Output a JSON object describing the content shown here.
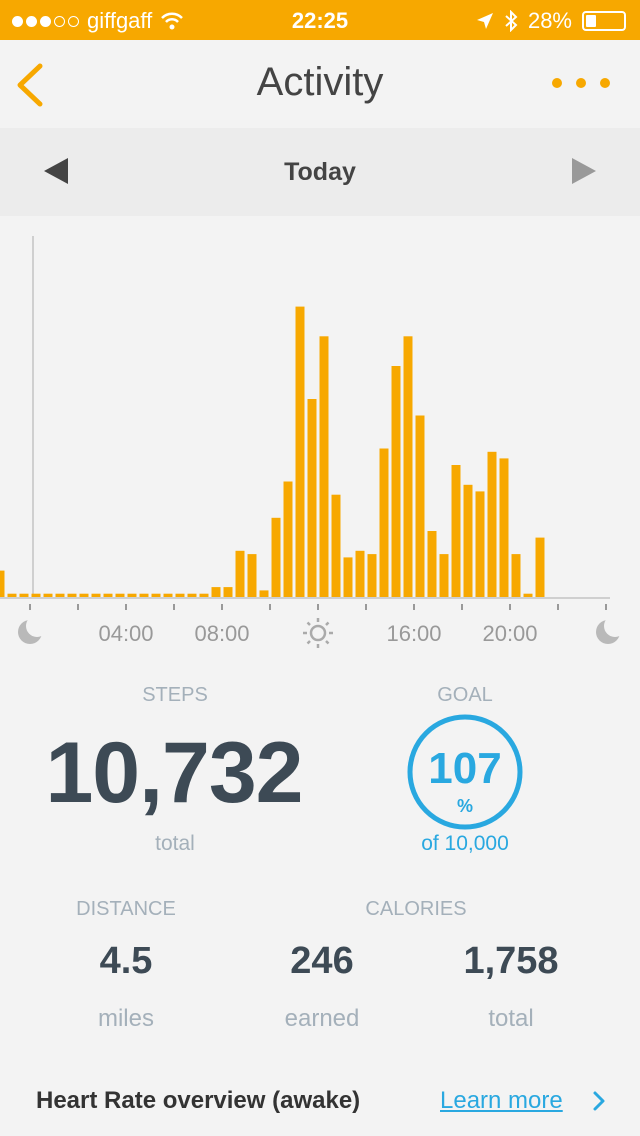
{
  "status_bar": {
    "carrier": "giffgaff",
    "time": "22:25",
    "battery_percent": "28%",
    "battery_level": 0.28,
    "signal_bars_filled": 3,
    "signal_bars_total": 5
  },
  "nav": {
    "title": "Activity",
    "back_icon": "chevron-left-icon",
    "more_icon": "more-horizontal-icon"
  },
  "date_nav": {
    "label": "Today"
  },
  "colors": {
    "accent": "#f7a800",
    "goal_blue": "#29a8e0",
    "text_dark": "#3d4a55",
    "text_muted": "#a4b0ba"
  },
  "chart_data": {
    "type": "bar",
    "title": "",
    "xlabel": "",
    "ylabel": "",
    "interval_minutes": 30,
    "x_tick_labels": [
      "04:00",
      "08:00",
      "16:00",
      "20:00"
    ],
    "x_tick_icons": [
      "moon-icon",
      "sun-icon",
      "moon-icon"
    ],
    "ylim": [
      0,
      1
    ],
    "values": [
      0.08,
      0.01,
      0.01,
      0.01,
      0.01,
      0.01,
      0.01,
      0.01,
      0.01,
      0.01,
      0.01,
      0.01,
      0.01,
      0.01,
      0.01,
      0.01,
      0.01,
      0.01,
      0.03,
      0.03,
      0.14,
      0.13,
      0.02,
      0.24,
      0.35,
      0.88,
      0.6,
      0.79,
      0.31,
      0.12,
      0.14,
      0.13,
      0.45,
      0.7,
      0.79,
      0.55,
      0.2,
      0.13,
      0.4,
      0.34,
      0.32,
      0.44,
      0.42,
      0.13,
      0.01,
      0.18,
      0.0,
      0.0
    ]
  },
  "steps": {
    "label": "STEPS",
    "value": "10,732",
    "sub": "total"
  },
  "goal": {
    "label": "GOAL",
    "value": "107",
    "unit": "%",
    "sub": "of 10,000",
    "progress_fraction": 1.0
  },
  "distance": {
    "label": "DISTANCE",
    "value": "4.5",
    "unit": "miles"
  },
  "calories": {
    "label": "CALORIES",
    "earned_value": "246",
    "earned_label": "earned",
    "total_value": "1,758",
    "total_label": "total"
  },
  "heart_rate": {
    "title": "Heart Rate overview (awake)",
    "link": "Learn more"
  }
}
